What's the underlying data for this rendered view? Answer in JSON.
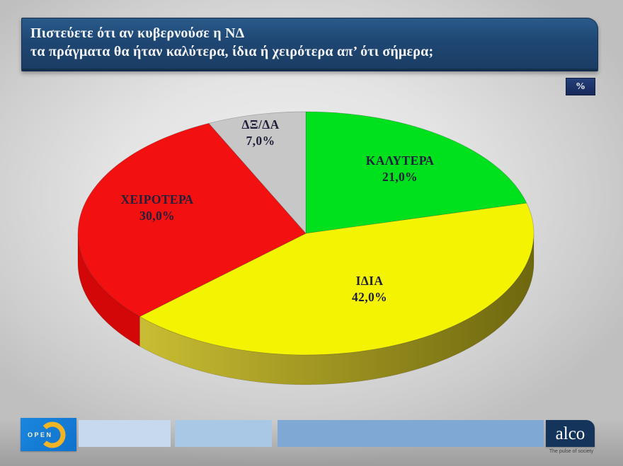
{
  "title": {
    "line1": "Πιστεύετε ότι αν κυβερνούσε η ΝΔ",
    "line2": "τα πράγματα θα ήταν καλύτερα, ίδια ή χειρότερα απ’ ότι σήμερα;"
  },
  "unit_badge": "%",
  "chart_data": {
    "type": "pie",
    "style": "3d",
    "title": "Πιστεύετε ότι αν κυβερνούσε η ΝΔ τα πράγματα θα ήταν καλύτερα, ίδια ή χειρότερα απ’ ότι σήμερα;",
    "unit": "%",
    "start_angle_deg": 0,
    "direction": "clockwise",
    "legend": "none",
    "slices": [
      {
        "key": "kalytera",
        "label": "ΚΑΛΥΤΕΡΑ",
        "value": 21.0,
        "display": "21,0%",
        "color": "#00e11e",
        "side_color": "#0c9a18"
      },
      {
        "key": "idia",
        "label": "ΙΔΙΑ",
        "value": 42.0,
        "display": "42,0%",
        "color": "#f4f400",
        "side_gradient": [
          "#c9bd33",
          "#6e670e"
        ],
        "side_color": "#8a8115"
      },
      {
        "key": "xeirotera",
        "label": "ΧΕΙΡΟΤΕΡΑ",
        "value": 30.0,
        "display": "30,0%",
        "color": "#f21010",
        "side_color": "#d30707"
      },
      {
        "key": "dx-da",
        "label": "ΔΞ/ΔΑ",
        "value": 7.0,
        "display": "7,0%",
        "color": "#c7c7c7",
        "side_color": "#9e9e9e"
      }
    ]
  },
  "footer": {
    "open_logo_text": "OPEN",
    "alco_logo_text": "alco",
    "alco_tagline": "The pulse of society"
  }
}
